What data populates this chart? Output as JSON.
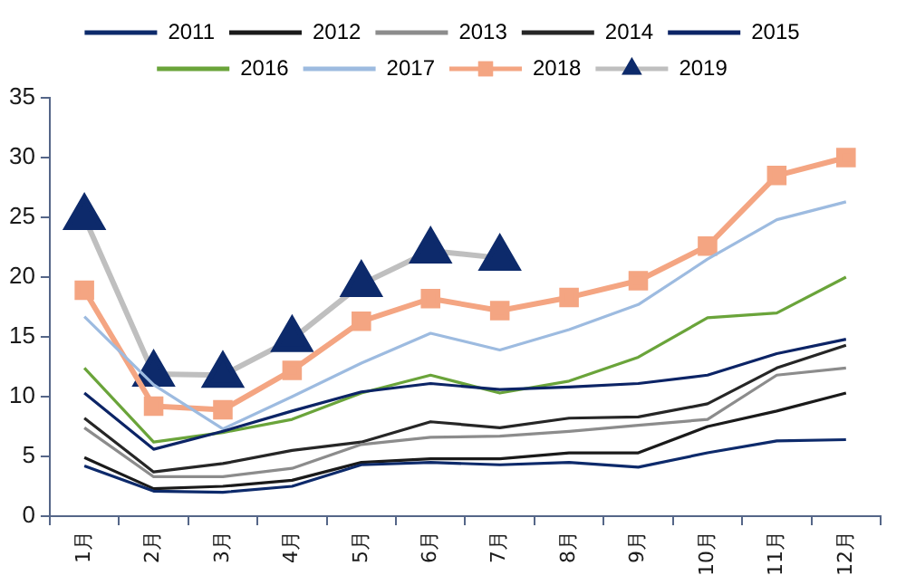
{
  "chart_data": {
    "type": "line",
    "categories": [
      "1月",
      "2月",
      "3月",
      "4月",
      "5月",
      "6月",
      "7月",
      "8月",
      "9月",
      "10月",
      "11月",
      "12月"
    ],
    "ylim": [
      0,
      35
    ],
    "yticks": [
      0,
      5,
      10,
      15,
      20,
      25,
      30,
      35
    ],
    "grid": false,
    "legend": "top",
    "marker": "none",
    "line_style": "solid",
    "series": [
      {
        "name": "2011",
        "color": "#0d2a6b",
        "values": [
          4.2,
          2.1,
          2.0,
          2.5,
          4.3,
          4.5,
          4.3,
          4.5,
          4.1,
          5.3,
          6.3,
          6.4
        ]
      },
      {
        "name": "2012",
        "color": "#1a1a1a",
        "values": [
          4.9,
          2.3,
          2.5,
          3.0,
          4.5,
          4.8,
          4.8,
          5.3,
          5.3,
          7.5,
          8.8,
          10.3
        ]
      },
      {
        "name": "2013",
        "color": "#8c8c8c",
        "values": [
          7.4,
          3.3,
          3.3,
          4.0,
          6.0,
          6.6,
          6.7,
          7.1,
          7.6,
          8.1,
          11.8,
          12.4
        ]
      },
      {
        "name": "2014",
        "color": "#262626",
        "values": [
          8.2,
          3.7,
          4.4,
          5.5,
          6.2,
          7.9,
          7.4,
          8.2,
          8.3,
          9.4,
          12.4,
          14.3
        ]
      },
      {
        "name": "2015",
        "color": "#0c2466",
        "values": [
          10.3,
          5.6,
          7.1,
          8.8,
          10.4,
          11.1,
          10.6,
          10.8,
          11.1,
          11.8,
          13.6,
          14.8
        ]
      },
      {
        "name": "2016",
        "color": "#6aa43a",
        "values": [
          12.4,
          6.2,
          7.0,
          8.1,
          10.3,
          11.8,
          10.3,
          11.3,
          13.3,
          16.6,
          17.0,
          20.0
        ]
      },
      {
        "name": "2017",
        "color": "#9dbbe0",
        "values": [
          16.7,
          11.0,
          7.3,
          10.0,
          12.8,
          15.3,
          13.9,
          15.6,
          17.7,
          21.5,
          24.8,
          26.3
        ]
      },
      {
        "name": "2018",
        "color": "#f4a582",
        "marker": "square",
        "values": [
          18.9,
          9.2,
          8.9,
          12.2,
          16.3,
          18.2,
          17.2,
          18.3,
          19.7,
          22.6,
          28.5,
          30.0
        ]
      },
      {
        "name": "2019",
        "color": "#0d2a6b",
        "marker": "triangle",
        "values": [
          25.0,
          11.9,
          11.8,
          14.8,
          19.4,
          22.2,
          21.6,
          null,
          null,
          null,
          null,
          null
        ]
      }
    ]
  }
}
